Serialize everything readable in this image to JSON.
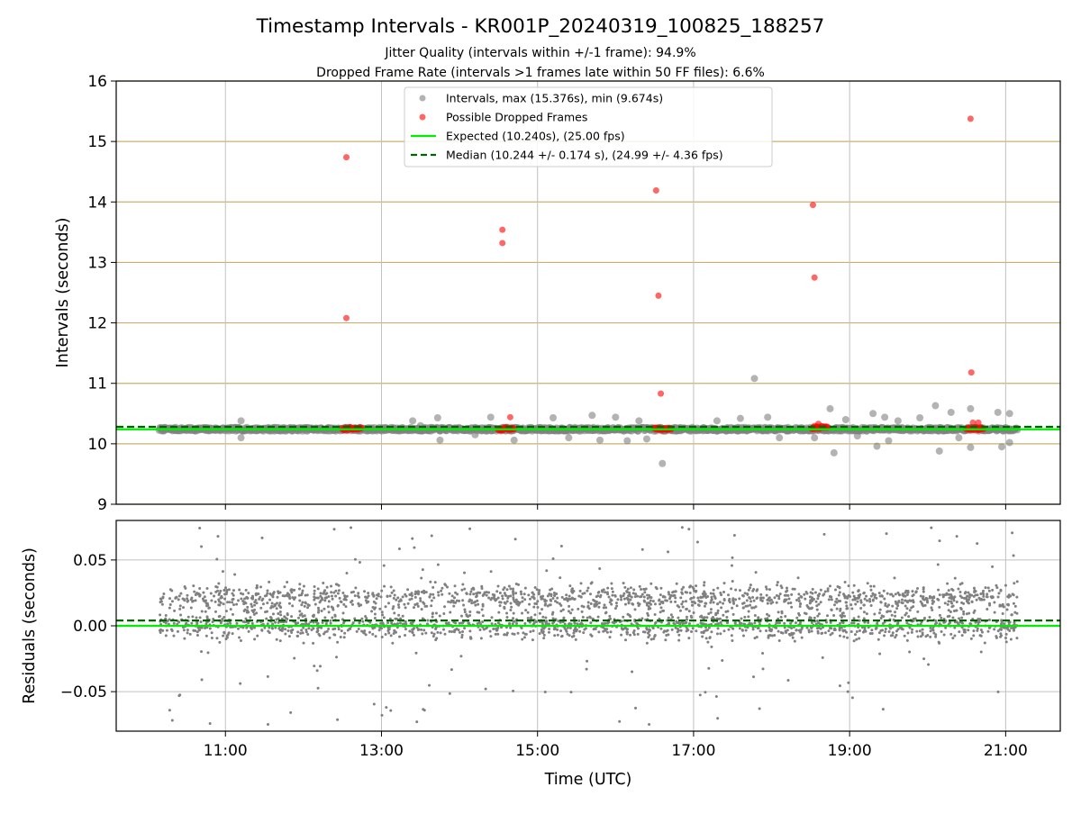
{
  "title": "Timestamp Intervals - KR001P_20240319_100825_188257",
  "subtitle_line1": "Jitter Quality (intervals within +/-1 frame): 94.9%",
  "subtitle_line2": "Dropped Frame Rate (intervals >1 frames late within 50 FF files): 6.6%",
  "colors": {
    "intervals": "#808080",
    "dropped": "#ff0000",
    "expected": "#00ee00",
    "median": "#006400",
    "hgrid": "#c8b070",
    "vgrid": "#c0c0c0"
  },
  "chart_data": [
    {
      "type": "scatter",
      "ylabel": "Intervals (seconds)",
      "ylim": [
        9,
        16
      ],
      "xlim_hours": [
        9.6,
        21.7
      ],
      "yticks": [
        "9",
        "10",
        "11",
        "12",
        "13",
        "14",
        "15",
        "16"
      ],
      "grid": true,
      "legend_position": "top-center",
      "legend": [
        "Intervals, max (15.376s), min (9.674s)",
        "Possible Dropped Frames",
        "Expected (10.240s), (25.00 fps)",
        "Median (10.244 +/- 0.174 s), (24.99 +/- 4.36 fps)"
      ],
      "expected": 10.24,
      "median": 10.244,
      "max": 15.376,
      "min": 9.674,
      "dropped_frames": [
        {
          "x": 12.55,
          "y": 14.74
        },
        {
          "x": 12.55,
          "y": 12.08
        },
        {
          "x": 14.55,
          "y": 13.54
        },
        {
          "x": 14.55,
          "y": 13.32
        },
        {
          "x": 14.65,
          "y": 10.44
        },
        {
          "x": 16.52,
          "y": 14.19
        },
        {
          "x": 16.55,
          "y": 12.45
        },
        {
          "x": 16.58,
          "y": 10.83
        },
        {
          "x": 18.53,
          "y": 13.95
        },
        {
          "x": 18.55,
          "y": 12.75
        },
        {
          "x": 18.6,
          "y": 10.33
        },
        {
          "x": 20.55,
          "y": 15.376
        },
        {
          "x": 20.56,
          "y": 11.18
        },
        {
          "x": 20.58,
          "y": 10.35
        },
        {
          "x": 20.65,
          "y": 10.35
        }
      ],
      "dropped_clusters": [
        {
          "from": 12.5,
          "to": 12.75,
          "y": 10.25
        },
        {
          "from": 14.5,
          "to": 14.7,
          "y": 10.25
        },
        {
          "from": 16.5,
          "to": 16.72,
          "y": 10.25
        },
        {
          "from": 18.52,
          "to": 18.72,
          "y": 10.27
        },
        {
          "from": 20.5,
          "to": 20.72,
          "y": 10.25
        }
      ],
      "outliers": [
        {
          "x": 11.2,
          "y": 10.38
        },
        {
          "x": 11.2,
          "y": 10.1
        },
        {
          "x": 13.4,
          "y": 10.38
        },
        {
          "x": 13.5,
          "y": 10.3
        },
        {
          "x": 13.72,
          "y": 10.43
        },
        {
          "x": 13.75,
          "y": 10.06
        },
        {
          "x": 14.2,
          "y": 10.15
        },
        {
          "x": 14.4,
          "y": 10.44
        },
        {
          "x": 14.7,
          "y": 10.06
        },
        {
          "x": 15.2,
          "y": 10.43
        },
        {
          "x": 15.4,
          "y": 10.1
        },
        {
          "x": 15.7,
          "y": 10.47
        },
        {
          "x": 15.8,
          "y": 10.06
        },
        {
          "x": 16.0,
          "y": 10.44
        },
        {
          "x": 16.15,
          "y": 10.05
        },
        {
          "x": 16.3,
          "y": 10.38
        },
        {
          "x": 16.4,
          "y": 10.08
        },
        {
          "x": 16.6,
          "y": 9.674
        },
        {
          "x": 17.3,
          "y": 10.38
        },
        {
          "x": 17.6,
          "y": 10.42
        },
        {
          "x": 17.78,
          "y": 11.08
        },
        {
          "x": 17.95,
          "y": 10.44
        },
        {
          "x": 18.1,
          "y": 10.1
        },
        {
          "x": 18.55,
          "y": 10.1
        },
        {
          "x": 18.75,
          "y": 10.58
        },
        {
          "x": 18.8,
          "y": 9.85
        },
        {
          "x": 18.95,
          "y": 10.4
        },
        {
          "x": 19.1,
          "y": 10.13
        },
        {
          "x": 19.3,
          "y": 10.5
        },
        {
          "x": 19.35,
          "y": 9.96
        },
        {
          "x": 19.45,
          "y": 10.44
        },
        {
          "x": 19.5,
          "y": 10.05
        },
        {
          "x": 19.62,
          "y": 10.38
        },
        {
          "x": 19.9,
          "y": 10.43
        },
        {
          "x": 20.1,
          "y": 10.63
        },
        {
          "x": 20.15,
          "y": 9.88
        },
        {
          "x": 20.3,
          "y": 10.52
        },
        {
          "x": 20.4,
          "y": 10.1
        },
        {
          "x": 20.55,
          "y": 10.58
        },
        {
          "x": 20.55,
          "y": 9.94
        },
        {
          "x": 20.9,
          "y": 10.52
        },
        {
          "x": 20.95,
          "y": 9.95
        },
        {
          "x": 21.05,
          "y": 10.5
        },
        {
          "x": 21.05,
          "y": 10.02
        }
      ]
    },
    {
      "type": "scatter",
      "ylabel": "Residuals (seconds)",
      "xlabel": "Time (UTC)",
      "ylim": [
        -0.08,
        0.08
      ],
      "yticks": [
        "0.05",
        "0.00",
        "−0.05"
      ],
      "xtick_labels": [
        "11:00",
        "13:00",
        "15:00",
        "17:00",
        "19:00",
        "21:00"
      ],
      "xticks_hours": [
        11,
        13,
        15,
        17,
        19,
        21
      ],
      "x_range_hours": [
        10.15,
        21.15
      ],
      "expected_residual": 0.0,
      "median_residual": 0.004,
      "bands": [
        0.0,
        0.021
      ]
    }
  ]
}
